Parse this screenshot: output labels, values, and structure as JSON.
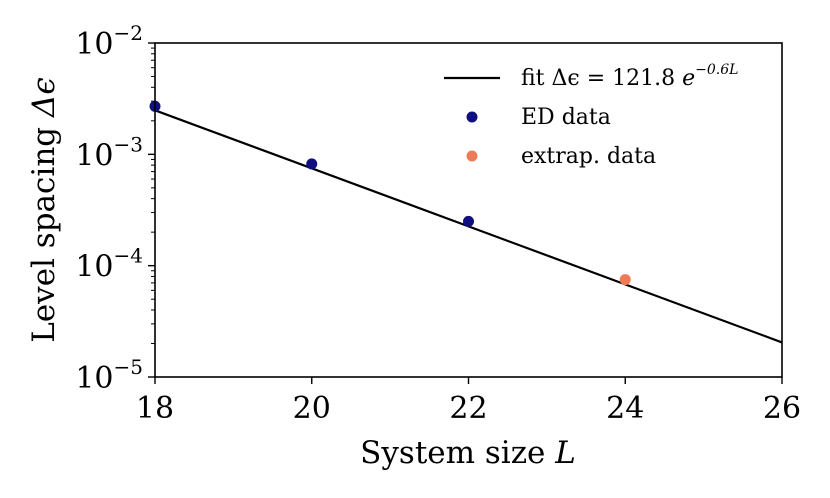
{
  "chart_data": {
    "type": "scatter",
    "title": "",
    "xlabel": "System size",
    "xlabel_var": "L",
    "ylabel": "Level spacing",
    "ylabel_var": "Δϵ",
    "xlim": [
      18,
      26
    ],
    "ylim": [
      1e-05,
      0.01
    ],
    "yscale": "log",
    "grid": false,
    "legend_position": "top-right",
    "x_ticks": [
      18,
      20,
      22,
      24,
      26
    ],
    "x_tick_labels": [
      "18",
      "20",
      "22",
      "24",
      "26"
    ],
    "y_ticks": [
      1e-05,
      0.0001,
      0.001,
      0.01
    ],
    "y_tick_labels": [
      {
        "base": "10",
        "exp": "−5"
      },
      {
        "base": "10",
        "exp": "−4"
      },
      {
        "base": "10",
        "exp": "−3"
      },
      {
        "base": "10",
        "exp": "−2"
      }
    ],
    "series": [
      {
        "name": "fit",
        "kind": "line",
        "color": "#000000",
        "prefactor": 121.8,
        "rate": 0.6,
        "x": [
          18,
          26
        ],
        "label_prefix": "fit",
        "label_formula": "Δϵ = 121.8",
        "label_e": "e",
        "label_exp": "−0.6L"
      },
      {
        "name": "ED data",
        "kind": "points",
        "color": "#0f0f80",
        "x": [
          18,
          20,
          22
        ],
        "y": [
          0.0027,
          0.00082,
          0.00025
        ]
      },
      {
        "name": "extrap. data",
        "kind": "points",
        "color": "#ee7b57",
        "x": [
          24
        ],
        "y": [
          7.5e-05
        ]
      }
    ]
  }
}
